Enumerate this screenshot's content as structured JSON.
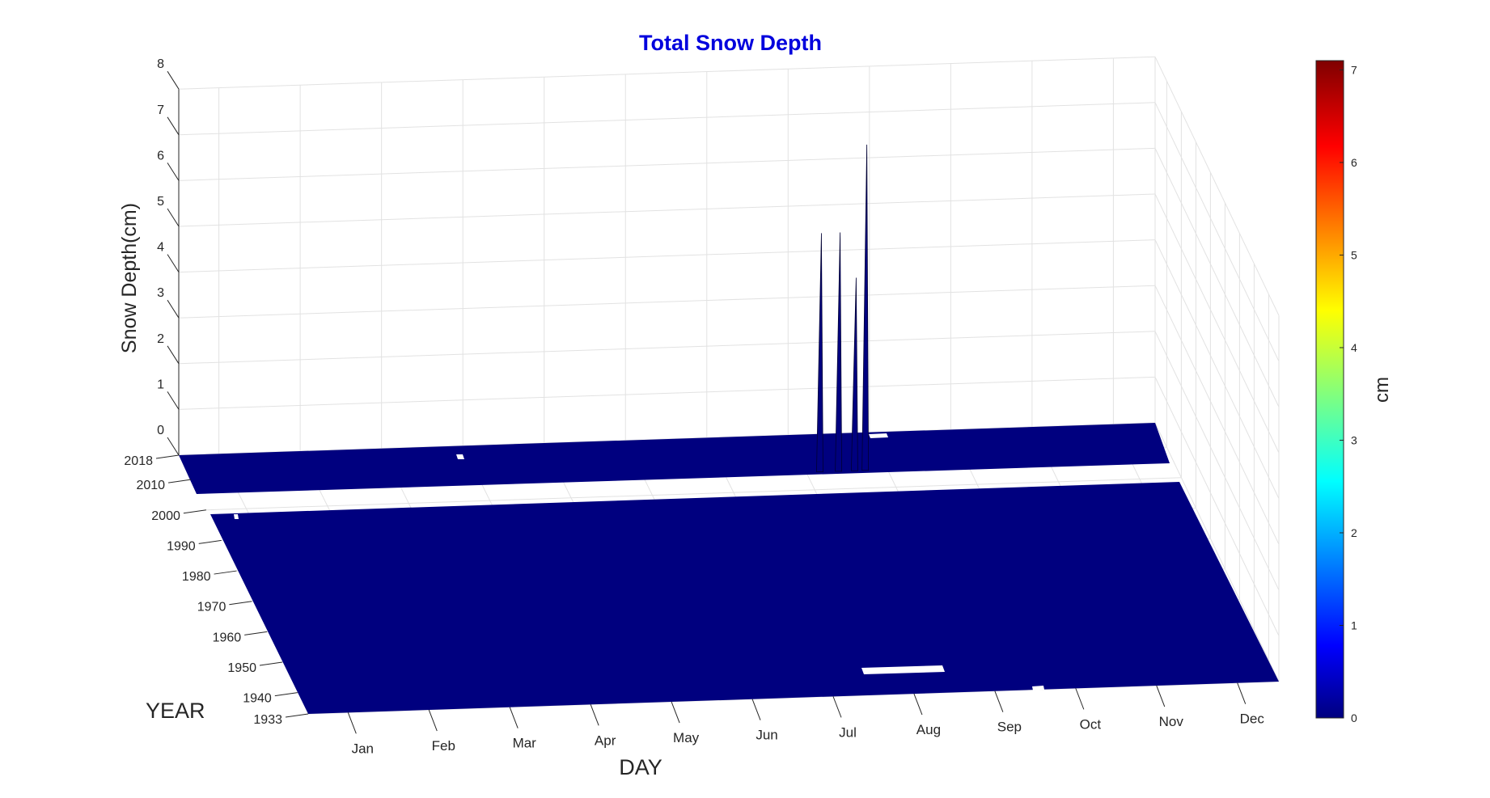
{
  "chart_data": {
    "type": "surface",
    "title": "Total Snow Depth",
    "xlabel": "DAY",
    "ylabel": "YEAR",
    "zlabel": "Snow Depth(cm)",
    "colorbar_label": "cm",
    "x_ticks": [
      "Jan",
      "Feb",
      "Mar",
      "Apr",
      "May",
      "Jun",
      "Jul",
      "Aug",
      "Sep",
      "Oct",
      "Nov",
      "Dec"
    ],
    "y_ticks": [
      "1933",
      "1940",
      "1950",
      "1960",
      "1970",
      "1980",
      "1990",
      "2000",
      "2010",
      "2018"
    ],
    "z_ticks": [
      "0",
      "1",
      "2",
      "3",
      "4",
      "5",
      "6",
      "7",
      "8"
    ],
    "zlim": [
      0,
      8
    ],
    "colorbar_ticks": [
      "0",
      "1",
      "2",
      "3",
      "4",
      "5",
      "6",
      "7"
    ],
    "clim": [
      0,
      7.1
    ],
    "colormap": "jet",
    "surface_color": "#00007f",
    "title_color": "#0000dd",
    "grid": true,
    "missing_year_band": [
      2006,
      2010
    ],
    "peaks": [
      {
        "month": "Aug",
        "day_of_year": 233,
        "year": 2006,
        "depth": 5.2
      },
      {
        "month": "Aug",
        "day_of_year": 240,
        "year": 2006,
        "depth": 5.2
      },
      {
        "month": "Aug",
        "day_of_year": 246,
        "year": 2006,
        "depth": 4.2
      },
      {
        "month": "Aug",
        "day_of_year": 250,
        "year": 2006,
        "depth": 7.1
      }
    ]
  }
}
